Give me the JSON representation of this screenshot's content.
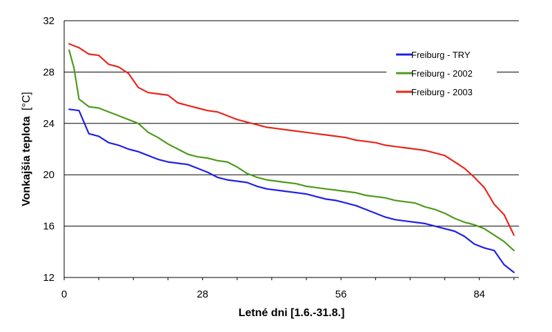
{
  "chart_data": {
    "type": "line",
    "title": "",
    "xlabel": "Letné dni [1.6.-31.8.]",
    "ylabel_main": "Vonkajšia teplota",
    "ylabel_unit": "[°C]",
    "xlim": [
      0,
      92
    ],
    "ylim": [
      12,
      32
    ],
    "xticks": [
      0,
      28,
      56,
      84
    ],
    "yticks": [
      12,
      16,
      20,
      24,
      28,
      32
    ],
    "grid": "horizontal",
    "legend_position": "top-right",
    "series": [
      {
        "name": "Freiburg - TRY",
        "color": "#1f1fe6",
        "x": [
          1,
          3,
          5,
          7,
          9,
          11,
          13,
          15,
          17,
          19,
          21,
          23,
          25,
          27,
          29,
          31,
          33,
          35,
          37,
          39,
          41,
          43,
          45,
          47,
          49,
          51,
          53,
          55,
          57,
          59,
          61,
          63,
          65,
          67,
          69,
          71,
          73,
          75,
          77,
          79,
          81,
          83,
          85,
          87,
          89,
          91
        ],
        "values": [
          25.1,
          25.0,
          23.2,
          23.0,
          22.5,
          22.3,
          22.0,
          21.8,
          21.5,
          21.2,
          21.0,
          20.9,
          20.8,
          20.5,
          20.2,
          19.8,
          19.6,
          19.5,
          19.4,
          19.1,
          18.9,
          18.8,
          18.7,
          18.6,
          18.5,
          18.3,
          18.1,
          18.0,
          17.8,
          17.6,
          17.3,
          17.0,
          16.7,
          16.5,
          16.4,
          16.3,
          16.2,
          16.0,
          15.8,
          15.6,
          15.2,
          14.6,
          14.3,
          14.1,
          13.0,
          12.4
        ]
      },
      {
        "name": "Freiburg - 2002",
        "color": "#4c9a1c",
        "x": [
          1,
          2,
          3,
          5,
          7,
          9,
          11,
          13,
          15,
          17,
          19,
          21,
          23,
          25,
          27,
          29,
          31,
          33,
          35,
          37,
          39,
          41,
          43,
          45,
          47,
          49,
          51,
          53,
          55,
          57,
          59,
          61,
          63,
          65,
          67,
          69,
          71,
          73,
          75,
          77,
          79,
          81,
          83,
          85,
          87,
          89,
          91
        ],
        "values": [
          29.7,
          28.3,
          25.9,
          25.3,
          25.2,
          24.9,
          24.6,
          24.3,
          24.0,
          23.3,
          22.9,
          22.4,
          22.0,
          21.6,
          21.4,
          21.3,
          21.1,
          21.0,
          20.6,
          20.1,
          19.8,
          19.6,
          19.5,
          19.4,
          19.3,
          19.1,
          19.0,
          18.9,
          18.8,
          18.7,
          18.6,
          18.4,
          18.3,
          18.2,
          18.0,
          17.9,
          17.8,
          17.5,
          17.3,
          17.0,
          16.6,
          16.3,
          16.1,
          15.8,
          15.3,
          14.8,
          14.1
        ]
      },
      {
        "name": "Freiburg - 2003",
        "color": "#e8251b",
        "x": [
          1,
          3,
          5,
          7,
          9,
          11,
          13,
          15,
          17,
          19,
          21,
          23,
          25,
          27,
          29,
          31,
          33,
          35,
          37,
          39,
          41,
          43,
          45,
          47,
          49,
          51,
          53,
          55,
          57,
          59,
          61,
          63,
          65,
          67,
          69,
          71,
          73,
          75,
          77,
          79,
          81,
          83,
          85,
          87,
          89,
          91
        ],
        "values": [
          30.2,
          29.9,
          29.4,
          29.3,
          28.6,
          28.4,
          27.9,
          26.8,
          26.4,
          26.3,
          26.2,
          25.6,
          25.4,
          25.2,
          25.0,
          24.9,
          24.6,
          24.3,
          24.1,
          23.9,
          23.7,
          23.6,
          23.5,
          23.4,
          23.3,
          23.2,
          23.1,
          23.0,
          22.9,
          22.7,
          22.6,
          22.5,
          22.3,
          22.2,
          22.1,
          22.0,
          21.9,
          21.7,
          21.5,
          21.0,
          20.5,
          19.8,
          19.0,
          17.7,
          16.9,
          15.3
        ]
      }
    ]
  }
}
